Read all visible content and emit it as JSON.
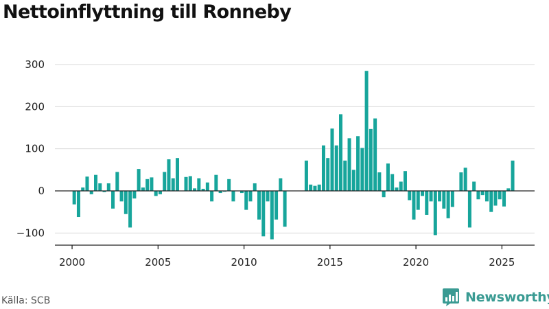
{
  "title": "Nettoinflyttning till Ronneby",
  "source": "Källa: SCB",
  "brand": {
    "name": "Newsworthy",
    "icon": "newsworthy-logo-icon"
  },
  "colors": {
    "bar": "#17a59b",
    "grid": "#d9d9d9",
    "axis": "#222222",
    "brand": "#3a9b93"
  },
  "chart_data": {
    "type": "bar",
    "frequency": "quarterly",
    "grid": true,
    "legend": "none",
    "xlabel": "",
    "ylabel": "",
    "ylim": [
      -130,
      300
    ],
    "xlim": [
      1999,
      2026.9
    ],
    "x_ticks": [
      "2000",
      "2005",
      "2010",
      "2015",
      "2020",
      "2025"
    ],
    "y_ticks": [
      {
        "value": -100,
        "label": "−100"
      },
      {
        "value": 0,
        "label": "0"
      },
      {
        "value": 100,
        "label": "100"
      },
      {
        "value": 200,
        "label": "200"
      },
      {
        "value": 300,
        "label": "300"
      }
    ],
    "start": {
      "year": 2000,
      "quarter": 1
    },
    "values": [
      -32,
      -62,
      8,
      34,
      -8,
      38,
      18,
      -3,
      18,
      -42,
      45,
      -25,
      -55,
      -87,
      -18,
      52,
      8,
      28,
      32,
      -12,
      -8,
      45,
      75,
      30,
      78,
      0,
      33,
      35,
      6,
      30,
      5,
      20,
      -25,
      38,
      -5,
      -2,
      28,
      -25,
      0,
      -5,
      -45,
      -25,
      18,
      -68,
      -108,
      -25,
      -115,
      -68,
      30,
      -85,
      0,
      0,
      0,
      0,
      72,
      15,
      12,
      15,
      108,
      78,
      148,
      108,
      182,
      72,
      125,
      50,
      130,
      102,
      285,
      147,
      172,
      44,
      -15,
      65,
      40,
      8,
      22,
      47,
      -22,
      -68,
      -45,
      -12,
      -57,
      -25,
      -105,
      -25,
      -42,
      -65,
      -38,
      0,
      44,
      55,
      -87,
      22,
      -20,
      -10,
      -25,
      -50,
      -35,
      -20,
      -37,
      6,
      72
    ]
  }
}
